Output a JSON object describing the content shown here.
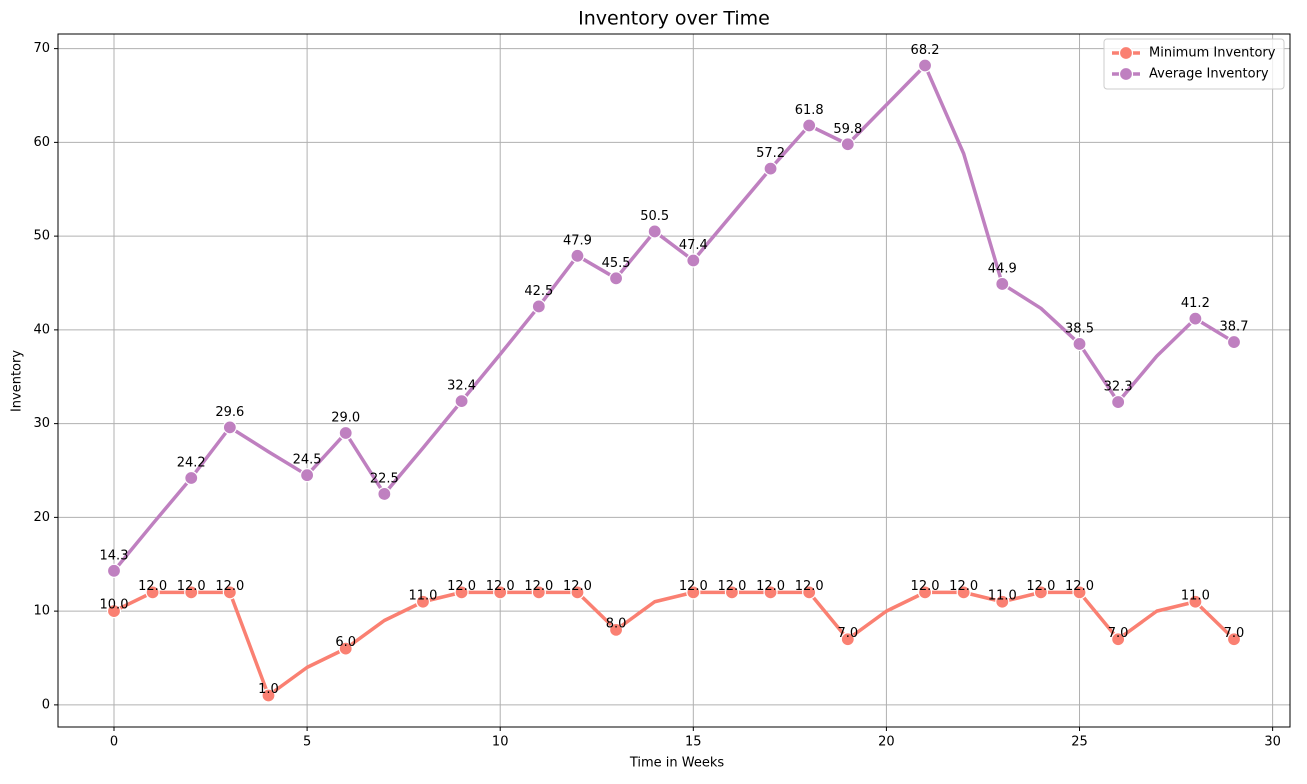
{
  "chart_data": {
    "type": "line",
    "title": "Inventory over Time",
    "x_label": "Time in Weeks",
    "y_label": "Inventory",
    "x": [
      0,
      1,
      2,
      3,
      4,
      5,
      6,
      7,
      8,
      9,
      10,
      11,
      12,
      13,
      14,
      15,
      16,
      17,
      18,
      19,
      20,
      21,
      22,
      23,
      24,
      25,
      26,
      27,
      28,
      29
    ],
    "series": [
      {
        "name": "Minimum Inventory",
        "color": "#fa8072",
        "values": [
          10,
          12,
          12,
          12,
          1,
          4,
          6,
          9,
          11,
          12,
          12,
          12,
          12,
          8,
          11,
          12,
          12,
          12,
          12,
          7,
          10,
          12,
          12,
          11,
          12,
          12,
          7,
          10,
          11,
          7
        ],
        "value_labels": [
          "10.0",
          "12.0",
          "12.0",
          "12.0",
          "1.0",
          null,
          "6.0",
          null,
          "11.0",
          "12.0",
          "12.0",
          "12.0",
          "12.0",
          "8.0",
          null,
          "12.0",
          "12.0",
          "12.0",
          "12.0",
          "7.0",
          null,
          "12.0",
          "12.0",
          "11.0",
          "12.0",
          "12.0",
          "7.0",
          null,
          "11.0",
          "7.0"
        ]
      },
      {
        "name": "Average Inventory",
        "color": "#bf80c0",
        "values": [
          14.3,
          19.3,
          24.2,
          29.6,
          27.0,
          24.5,
          29.0,
          22.5,
          27.4,
          32.4,
          37.4,
          42.5,
          47.9,
          45.5,
          50.5,
          47.4,
          52.3,
          57.2,
          61.8,
          59.8,
          64.0,
          68.2,
          58.8,
          44.9,
          42.3,
          38.5,
          32.3,
          37.2,
          41.2,
          38.7
        ],
        "value_labels": [
          "14.3",
          null,
          "24.2",
          "29.6",
          null,
          "24.5",
          "29.0",
          "22.5",
          null,
          "32.4",
          null,
          "42.5",
          "47.9",
          "45.5",
          "50.5",
          "47.4",
          null,
          "57.2",
          "61.8",
          "59.8",
          null,
          "68.2",
          null,
          "44.9",
          null,
          "38.5",
          "32.3",
          null,
          "41.2",
          "38.7"
        ]
      }
    ],
    "xlim": [
      -1.45,
      30.45
    ],
    "ylim": [
      -2.36,
      71.56
    ],
    "xticks": [
      0,
      5,
      10,
      15,
      20,
      25,
      30
    ],
    "yticks": [
      0,
      10,
      20,
      30,
      40,
      50,
      60,
      70
    ],
    "grid": true,
    "legend": "upper right"
  }
}
